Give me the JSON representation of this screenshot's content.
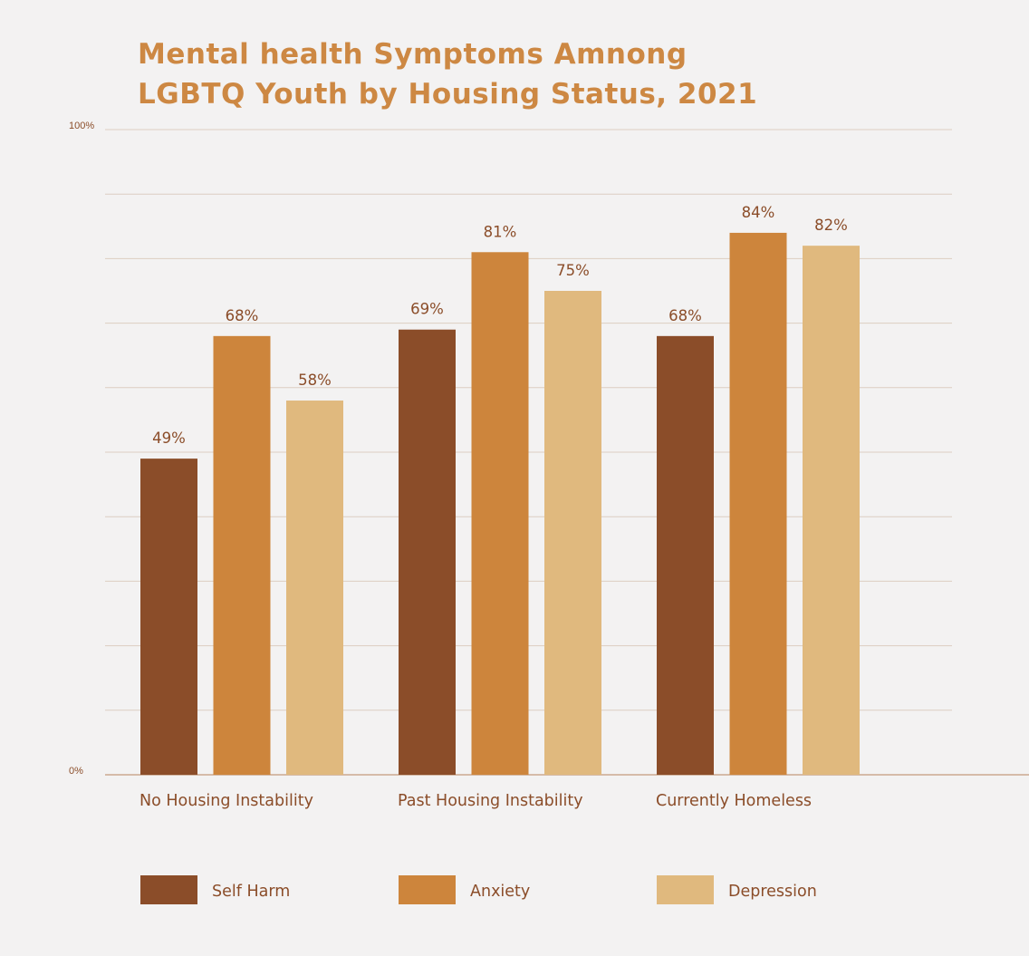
{
  "chart_data": {
    "type": "bar",
    "title_lines": [
      "Mental health Symptoms Amnong",
      "LGBTQ Youth by Housing Status, 2021"
    ],
    "categories": [
      "No Housing Instability",
      "Past Housing Instability",
      "Currently Homeless"
    ],
    "series": [
      {
        "name": "Self Harm",
        "color": "#8b4d29",
        "values": [
          49,
          69,
          68
        ],
        "labels": [
          "49%",
          "69%",
          "68%"
        ]
      },
      {
        "name": "Anxiety",
        "color": "#cd853c",
        "values": [
          68,
          81,
          84
        ],
        "labels": [
          "68%",
          "81%",
          "84%"
        ]
      },
      {
        "name": "Depression",
        "color": "#e0b97e",
        "values": [
          58,
          75,
          82
        ],
        "labels": [
          "58%",
          "75%",
          "82%"
        ]
      }
    ],
    "ylim": [
      0,
      100
    ],
    "y_ticks": [
      {
        "value": 100,
        "label": "100%"
      },
      {
        "value": 0,
        "label": "0%"
      }
    ],
    "gridlines": [
      0,
      10,
      20,
      30,
      40,
      50,
      60,
      70,
      80,
      90,
      100
    ],
    "xlabel": "",
    "ylabel": "",
    "legend_position": "bottom",
    "colors": {
      "background": "#f3f2f2",
      "title": "#cd8843",
      "text": "#8b4d29",
      "grid": "#dccdc1",
      "axis": "#c39a7c"
    }
  }
}
